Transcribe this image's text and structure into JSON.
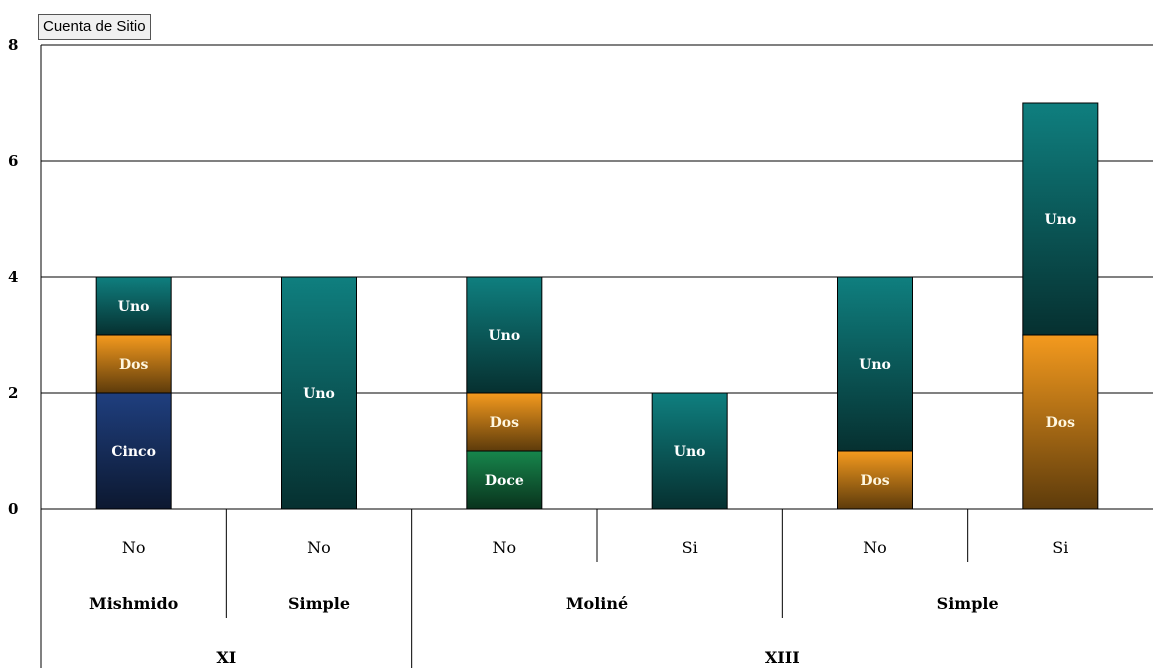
{
  "filter": {
    "label": "Cuenta de Sitio"
  },
  "colors": {
    "Uno": "#0f7f7f",
    "Dos": "#f49a1e",
    "Cinco": "#1f3f7f",
    "Doce": "#17864c"
  },
  "chart_data": {
    "type": "bar",
    "stacked": true,
    "ylim": [
      0,
      8
    ],
    "yticks": [
      0,
      2,
      4,
      6,
      8
    ],
    "grid": true,
    "categories": [
      {
        "level3": "No",
        "level2": "Mishmido",
        "level1": "XI"
      },
      {
        "level3": "No",
        "level2": "Simple",
        "level1": "XI"
      },
      {
        "level3": "No",
        "level2": "Moliné",
        "level1": "XIII"
      },
      {
        "level3": "Si",
        "level2": "Moliné",
        "level1": "XIII"
      },
      {
        "level3": "No",
        "level2": "Simple",
        "level1": "XIII"
      },
      {
        "level3": "Si",
        "level2": "Simple",
        "level1": "XIII"
      }
    ],
    "level2_groups": [
      {
        "label": "Mishmido",
        "span": 1
      },
      {
        "label": "Simple",
        "span": 1
      },
      {
        "label": "Moliné",
        "span": 2
      },
      {
        "label": "Simple",
        "span": 2
      }
    ],
    "level1_groups": [
      {
        "label": "XI",
        "span": 2
      },
      {
        "label": "XIII",
        "span": 4
      }
    ],
    "bars": [
      [
        {
          "series": "Cinco",
          "value": 2
        },
        {
          "series": "Dos",
          "value": 1
        },
        {
          "series": "Uno",
          "value": 1
        }
      ],
      [
        {
          "series": "Uno",
          "value": 4
        }
      ],
      [
        {
          "series": "Doce",
          "value": 1
        },
        {
          "series": "Dos",
          "value": 1
        },
        {
          "series": "Uno",
          "value": 2
        }
      ],
      [
        {
          "series": "Uno",
          "value": 2
        }
      ],
      [
        {
          "series": "Dos",
          "value": 1
        },
        {
          "series": "Uno",
          "value": 3
        }
      ],
      [
        {
          "series": "Dos",
          "value": 3
        },
        {
          "series": "Uno",
          "value": 4
        }
      ]
    ]
  }
}
